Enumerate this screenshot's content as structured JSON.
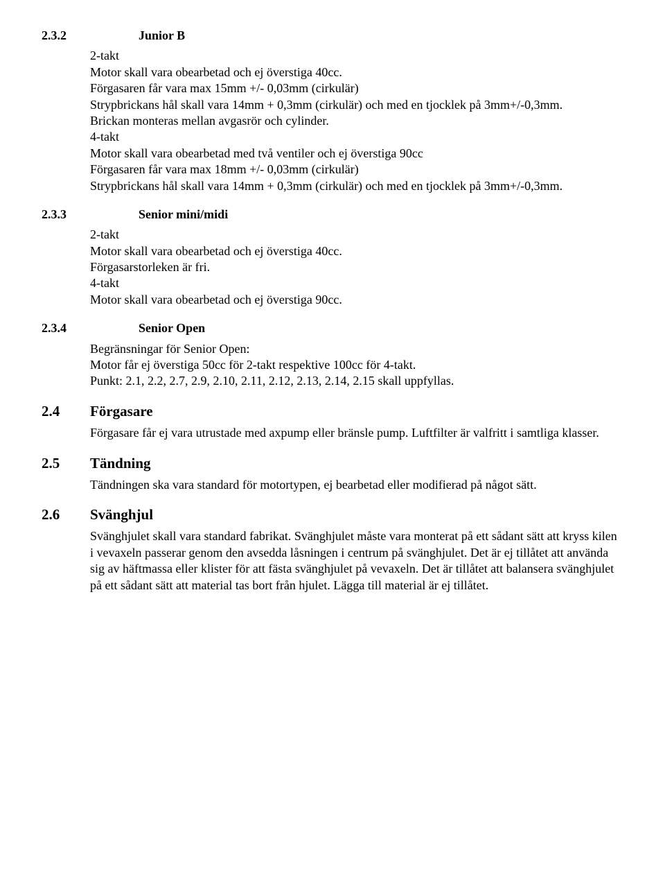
{
  "s232": {
    "num": "2.3.2",
    "title": "Junior B",
    "p1": "2-takt",
    "p2": "Motor skall vara obearbetad och ej överstiga 40cc.",
    "p3": "Förgasaren får vara max 15mm +/- 0,03mm (cirkulär)",
    "p4": "Strypbrickans hål skall vara 14mm + 0,3mm (cirkulär) och med en tjocklek på 3mm+/-0,3mm.",
    "p5": "Brickan monteras mellan avgasrör och cylinder.",
    "p6": "4-takt",
    "p7": "Motor skall vara obearbetad med två ventiler och ej överstiga 90cc",
    "p8": "Förgasaren får vara max 18mm +/- 0,03mm (cirkulär)",
    "p9": "Strypbrickans hål skall vara 14mm + 0,3mm (cirkulär) och med en tjocklek på 3mm+/-0,3mm."
  },
  "s233": {
    "num": "2.3.3",
    "title": "Senior mini/midi",
    "p1": "2-takt",
    "p2": "Motor skall vara obearbetad och ej överstiga 40cc.",
    "p3": "Förgasarstorleken är fri.",
    "p4": "4-takt",
    "p5": "Motor skall vara obearbetad och ej överstiga 90cc."
  },
  "s234": {
    "num": "2.3.4",
    "title": "Senior Open",
    "p1": "Begränsningar för Senior Open:",
    "p2": "Motor får ej överstiga 50cc för 2-takt respektive 100cc för 4-takt.",
    "p3": "Punkt: 2.1, 2.2, 2.7, 2.9, 2.10, 2.11, 2.12, 2.13, 2.14, 2.15 skall uppfyllas."
  },
  "s24": {
    "num": "2.4",
    "title": "Förgasare",
    "p1": "Förgasare får ej vara utrustade med axpump eller bränsle pump. Luftfilter är valfritt i samtliga klasser."
  },
  "s25": {
    "num": "2.5",
    "title": "Tändning",
    "p1": "Tändningen ska vara standard för motortypen, ej bearbetad eller modifierad på något sätt."
  },
  "s26": {
    "num": "2.6",
    "title": "Svänghjul",
    "p1": "Svänghjulet skall vara standard fabrikat. Svänghjulet måste vara monterat på ett sådant sätt att kryss kilen i vevaxeln passerar genom den avsedda låsningen i centrum på svänghjulet. Det är ej tillåtet att använda sig av häftmassa eller klister för att fästa svänghjulet på vevaxeln. Det är tillåtet att balansera svänghjulet på ett sådant sätt att material tas bort från hjulet. Lägga till material är ej tillåtet."
  }
}
